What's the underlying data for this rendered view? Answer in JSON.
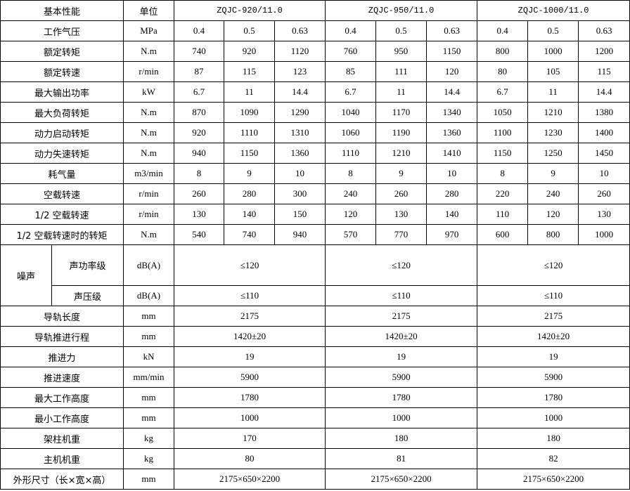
{
  "header": {
    "param": "基本性能",
    "unit": "单位",
    "models": [
      "ZQJC-920/11.0",
      "ZQJC-950/11.0",
      "ZQJC-1000/11.0"
    ]
  },
  "per_pressure_rows": [
    {
      "label": "工作气压",
      "unit": "MPa",
      "values": [
        "0.4",
        "0.5",
        "0.63",
        "0.4",
        "0.5",
        "0.63",
        "0.4",
        "0.5",
        "0.63"
      ]
    },
    {
      "label": "额定转矩",
      "unit": "N.m",
      "values": [
        "740",
        "920",
        "1120",
        "760",
        "950",
        "1150",
        "800",
        "1000",
        "1200"
      ]
    },
    {
      "label": "额定转速",
      "unit": "r/min",
      "values": [
        "87",
        "115",
        "123",
        "85",
        "111",
        "120",
        "80",
        "105",
        "115"
      ]
    },
    {
      "label": "最大输出功率",
      "unit": "kW",
      "values": [
        "6.7",
        "11",
        "14.4",
        "6.7",
        "11",
        "14.4",
        "6.7",
        "11",
        "14.4"
      ]
    },
    {
      "label": "最大负荷转矩",
      "unit": "N.m",
      "values": [
        "870",
        "1090",
        "1290",
        "1040",
        "1170",
        "1340",
        "1050",
        "1210",
        "1380"
      ]
    },
    {
      "label": "动力启动转矩",
      "unit": "N.m",
      "values": [
        "920",
        "1110",
        "1310",
        "1060",
        "1190",
        "1360",
        "1100",
        "1230",
        "1400"
      ]
    },
    {
      "label": "动力失速转矩",
      "unit": "N.m",
      "values": [
        "940",
        "1150",
        "1360",
        "1110",
        "1210",
        "1410",
        "1150",
        "1250",
        "1450"
      ]
    },
    {
      "label": "耗气量",
      "unit": "m3/min",
      "values": [
        "8",
        "9",
        "10",
        "8",
        "9",
        "10",
        "8",
        "9",
        "10"
      ]
    },
    {
      "label": "空载转速",
      "unit": "r/min",
      "values": [
        "260",
        "280",
        "300",
        "240",
        "260",
        "280",
        "220",
        "240",
        "260"
      ]
    },
    {
      "label": "1/2 空载转速",
      "unit": "r/min",
      "values": [
        "130",
        "140",
        "150",
        "120",
        "130",
        "140",
        "110",
        "120",
        "130"
      ]
    },
    {
      "label": "1/2 空载转速时的转矩",
      "unit": "N.m",
      "values": [
        "540",
        "740",
        "940",
        "570",
        "770",
        "970",
        "600",
        "800",
        "1000"
      ]
    }
  ],
  "noise": {
    "label": "噪声",
    "rows": [
      {
        "label": "声功率级",
        "unit": "dB(A)",
        "values": [
          "≤120",
          "≤120",
          "≤120"
        ]
      },
      {
        "label": "声压级",
        "unit": "dB(A)",
        "values": [
          "≤110",
          "≤110",
          "≤110"
        ]
      }
    ]
  },
  "per_model_rows": [
    {
      "label": "导轨长度",
      "unit": "mm",
      "values": [
        "2175",
        "2175",
        "2175"
      ]
    },
    {
      "label": "导轨推进行程",
      "unit": "mm",
      "values": [
        "1420±20",
        "1420±20",
        "1420±20"
      ]
    },
    {
      "label": "推进力",
      "unit": "kN",
      "values": [
        "19",
        "19",
        "19"
      ]
    },
    {
      "label": "推进速度",
      "unit": "mm/min",
      "values": [
        "5900",
        "5900",
        "5900"
      ]
    },
    {
      "label": "最大工作高度",
      "unit": "mm",
      "values": [
        "1780",
        "1780",
        "1780"
      ]
    },
    {
      "label": "最小工作高度",
      "unit": "mm",
      "values": [
        "1000",
        "1000",
        "1000"
      ]
    },
    {
      "label": "架柱机重",
      "unit": "kg",
      "values": [
        "170",
        "180",
        "180"
      ]
    },
    {
      "label": "主机机重",
      "unit": "kg",
      "values": [
        "80",
        "81",
        "82"
      ]
    },
    {
      "label": "外形尺寸（长×宽×高）",
      "unit": "mm",
      "values": [
        "2175×650×2200",
        "2175×650×2200",
        "2175×650×2200"
      ]
    }
  ]
}
